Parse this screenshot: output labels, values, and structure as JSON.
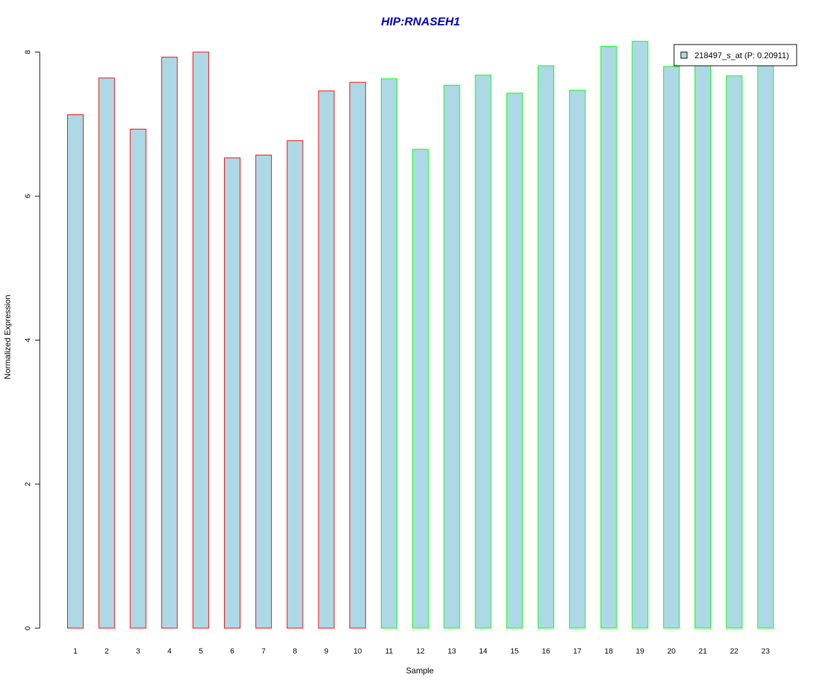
{
  "chart_data": {
    "type": "bar",
    "title": "HIP:RNASEH1",
    "title_color": "#0000CC",
    "xlabel": "Sample",
    "ylabel": "Normalized Expression",
    "ylim": [
      0,
      8
    ],
    "yticks": [
      0,
      2,
      4,
      6,
      8
    ],
    "grid": false,
    "legend_position": "top-right",
    "bar_fill": "#ADD8E6",
    "categories": [
      "1",
      "2",
      "3",
      "4",
      "5",
      "6",
      "7",
      "8",
      "9",
      "10",
      "11",
      "12",
      "13",
      "14",
      "15",
      "16",
      "17",
      "18",
      "19",
      "20",
      "21",
      "22",
      "23"
    ],
    "values": [
      7.13,
      7.64,
      6.93,
      7.93,
      8.0,
      6.53,
      6.57,
      6.77,
      7.46,
      7.58,
      7.63,
      6.65,
      7.54,
      7.68,
      7.43,
      7.81,
      7.47,
      8.08,
      8.15,
      7.8,
      7.82,
      7.67,
      7.83
    ],
    "bar_groups": [
      "red",
      "red",
      "red",
      "red",
      "red",
      "red",
      "red",
      "red",
      "red",
      "red",
      "green",
      "green",
      "green",
      "green",
      "green",
      "green",
      "green",
      "green",
      "green",
      "green",
      "green",
      "green",
      "green"
    ],
    "group_colors": {
      "red": "#FF0000",
      "green": "#00FF00"
    },
    "series": [
      {
        "name": "218497_s_at (P: 0.20911)",
        "values": [
          7.13,
          7.64,
          6.93,
          7.93,
          8.0,
          6.53,
          6.57,
          6.77,
          7.46,
          7.58,
          7.63,
          6.65,
          7.54,
          7.68,
          7.43,
          7.81,
          7.47,
          8.08,
          8.15,
          7.8,
          7.82,
          7.67,
          7.83
        ]
      }
    ]
  }
}
